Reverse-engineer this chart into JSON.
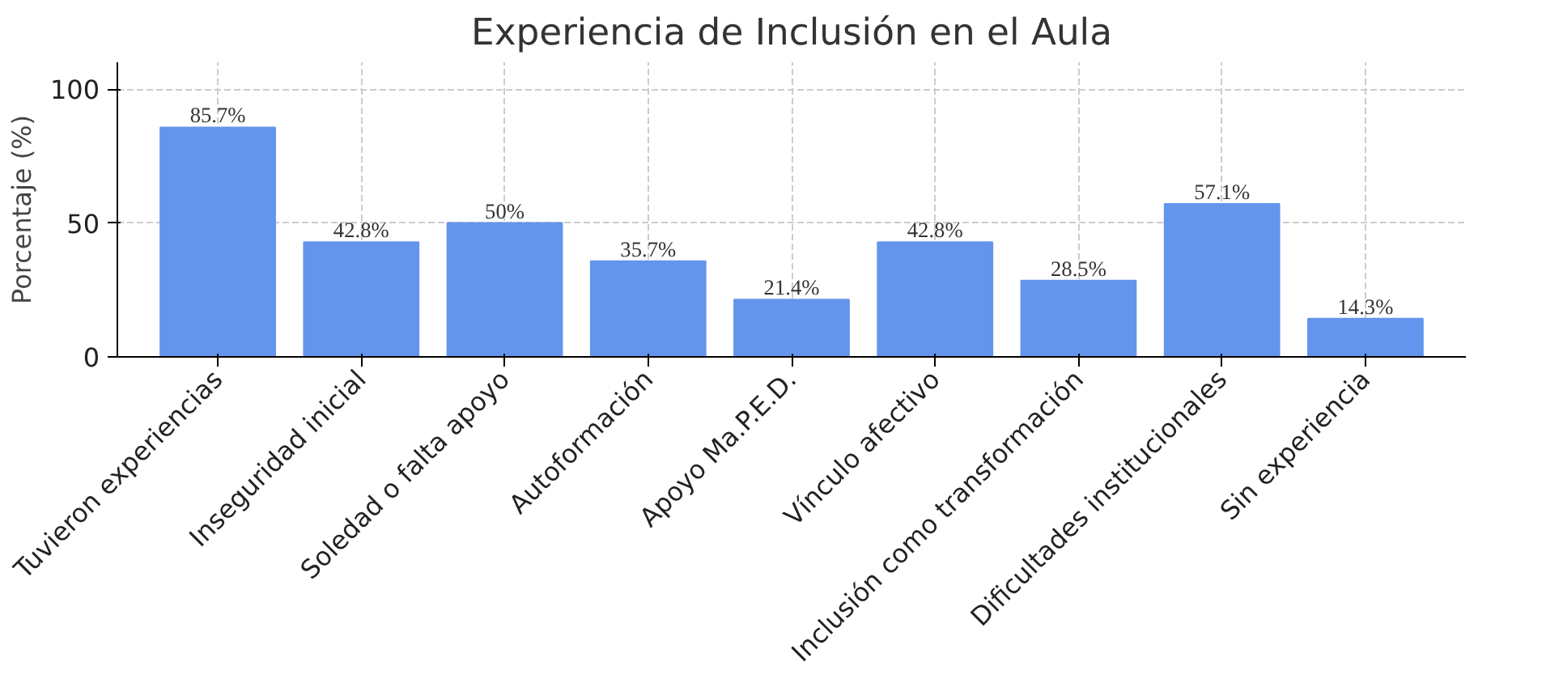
{
  "chart_data": {
    "type": "bar",
    "title": "Experiencia de Inclusión en el Aula",
    "ylabel": "Porcentaje (%)",
    "categories": [
      "Tuvieron experiencias",
      "Inseguridad inicial",
      "Soledad o falta apoyo",
      "Autoformación",
      "Apoyo Ma.P.E.D.",
      "Vínculo afectivo",
      "Inclusión como transformación",
      "Dificultades institucionales",
      "Sin experiencia"
    ],
    "values": [
      85.7,
      42.8,
      50,
      35.7,
      21.4,
      42.8,
      28.5,
      57.1,
      14.3
    ],
    "value_labels": [
      "85.7%",
      "42.8%",
      "50%",
      "35.7%",
      "21.4%",
      "42.8%",
      "28.5%",
      "57.1%",
      "14.3%"
    ],
    "color": "#6495ed",
    "ylim": [
      0,
      110
    ],
    "yticks": [
      0,
      50,
      100
    ],
    "grid": true
  }
}
